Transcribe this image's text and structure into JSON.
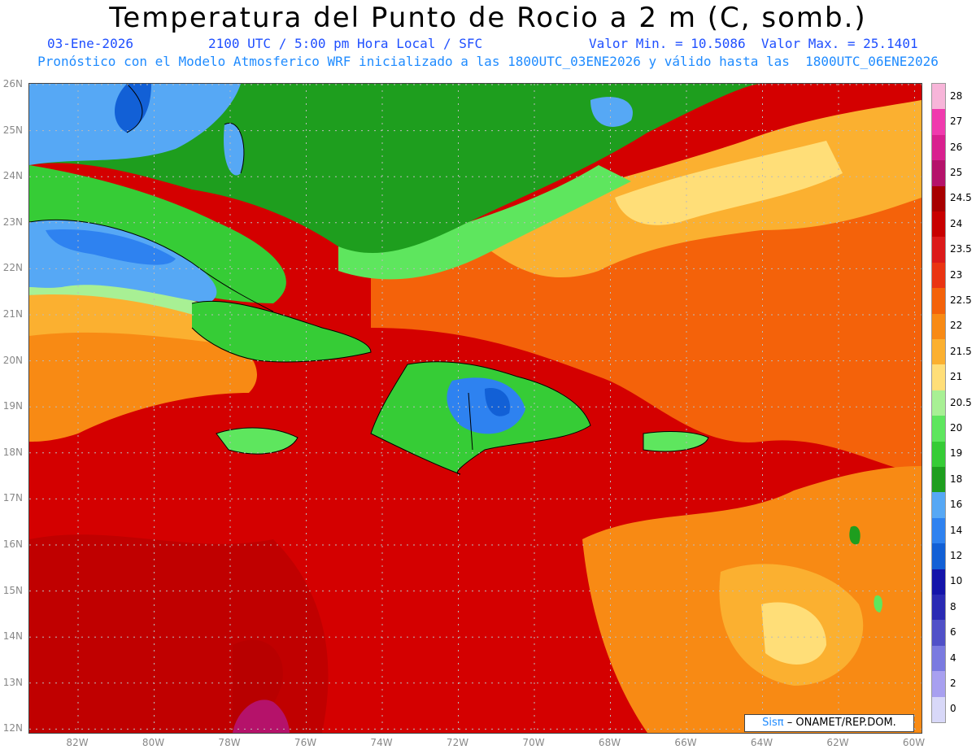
{
  "title": "Temperatura del Punto de Rocio a 2 m (C, somb.)",
  "date": "03-Ene-2026",
  "time": "2100 UTC / 5:00 pm Hora Local / SFC",
  "minmax": "Valor Min. = 10.5086  Valor Max. = 25.1401",
  "model_info": "Pronóstico con el Modelo Atmosferico WRF inicializado a las 1800UTC_03ENE2026 y válido hasta las  1800UTC_06ENE2026",
  "credit_a": "Sisπ",
  "credit_b": "– ONAMET/REP.DOM.",
  "lat_labels": [
    "26N",
    "25N",
    "24N",
    "23N",
    "22N",
    "21N",
    "20N",
    "19N",
    "18N",
    "17N",
    "16N",
    "15N",
    "14N",
    "13N",
    "12N"
  ],
  "lon_labels": [
    "82W",
    "80W",
    "78W",
    "76W",
    "74W",
    "72W",
    "70W",
    "68W",
    "66W",
    "64W",
    "62W",
    "60W"
  ],
  "colorbar": {
    "labels": [
      "28",
      "27",
      "26",
      "25",
      "24.5",
      "24",
      "23.5",
      "23",
      "22.5",
      "22",
      "21.5",
      "21",
      "20.5",
      "20",
      "19",
      "18",
      "16",
      "14",
      "12",
      "10",
      "8",
      "6",
      "4",
      "2",
      "0"
    ],
    "colors": [
      "#f7b5d9",
      "#f03aae",
      "#d9208f",
      "#b5126a",
      "#a80000",
      "#c80000",
      "#dc1a1a",
      "#ea3412",
      "#f4620a",
      "#f88a14",
      "#fbb030",
      "#ffde78",
      "#a8f094",
      "#5ee65e",
      "#36cc36",
      "#1e9e1e",
      "#56a8f5",
      "#2e82f0",
      "#1260d6",
      "#1414aa",
      "#2a2ab4",
      "#5050c8",
      "#7a7ae0",
      "#a8a0f0",
      "#d8d8f8"
    ]
  },
  "colors": {
    "red": "#d40000",
    "dark_red": "#b80000",
    "orange": "#f4620a",
    "light_orange": "#fbb030",
    "yellow": "#ffde78",
    "light_green": "#a8f094",
    "green": "#36cc36",
    "dark_green": "#1e9e1e",
    "light_blue": "#56a8f5",
    "blue": "#2e82f0",
    "magenta": "#d9208f"
  }
}
